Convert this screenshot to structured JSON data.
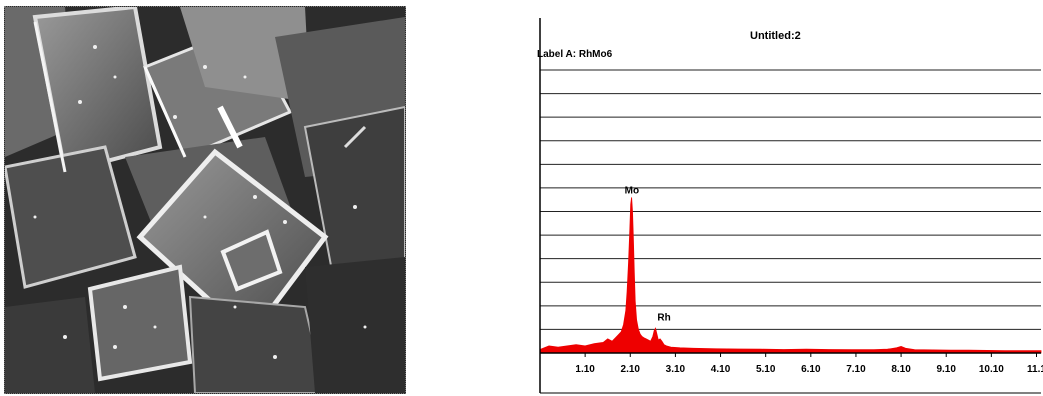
{
  "sem_image": {
    "description_icon": "sem-micrograph-image"
  },
  "chart_data": {
    "type": "area",
    "title": "Untitled:2",
    "label_text": "Label A: RhMo6",
    "xlabel": "",
    "ylabel": "",
    "x_tick_labels": [
      "1.10",
      "2.10",
      "3.10",
      "4.10",
      "5.10",
      "6.10",
      "7.10",
      "8.10",
      "9.10",
      "10.10",
      "11.1"
    ],
    "x_ticks": [
      1.1,
      2.1,
      3.1,
      4.1,
      5.1,
      6.1,
      7.1,
      8.1,
      9.1,
      10.1,
      11.1
    ],
    "xlim": [
      0.1,
      11.2
    ],
    "ylim": [
      0,
      12
    ],
    "grid": true,
    "fill_color": "#ee0000",
    "annotations": [
      {
        "text": "Mo",
        "x": 2.13,
        "y": 6.6
      },
      {
        "text": "Rh",
        "x": 2.7,
        "y": 1.2
      }
    ],
    "series": [
      {
        "x": [
          0.1,
          0.3,
          0.5,
          0.7,
          0.9,
          1.1,
          1.3,
          1.5,
          1.6,
          1.7,
          1.8,
          1.9,
          1.95,
          2.0,
          2.03,
          2.06,
          2.09,
          2.11,
          2.13,
          2.15,
          2.17,
          2.19,
          2.21,
          2.24,
          2.28,
          2.32,
          2.36,
          2.4,
          2.45,
          2.5,
          2.55,
          2.6,
          2.63,
          2.66,
          2.69,
          2.72,
          2.76,
          2.8,
          2.85,
          2.9,
          3.0,
          3.2,
          3.5,
          4.0,
          4.5,
          5.0,
          5.5,
          6.0,
          6.5,
          7.0,
          7.5,
          7.8,
          8.0,
          8.1,
          8.2,
          8.4,
          8.8,
          9.2,
          9.6,
          10.0,
          10.4,
          10.8,
          11.2
        ],
        "y": [
          0.15,
          0.3,
          0.25,
          0.3,
          0.35,
          0.3,
          0.4,
          0.45,
          0.6,
          0.5,
          0.7,
          0.9,
          1.2,
          1.8,
          2.6,
          3.8,
          5.2,
          6.3,
          6.6,
          6.0,
          4.8,
          3.4,
          2.2,
          1.4,
          1.0,
          0.8,
          0.7,
          0.65,
          0.6,
          0.55,
          0.5,
          0.7,
          0.95,
          1.05,
          0.8,
          0.55,
          0.6,
          0.5,
          0.35,
          0.3,
          0.25,
          0.22,
          0.2,
          0.18,
          0.17,
          0.16,
          0.15,
          0.16,
          0.15,
          0.14,
          0.14,
          0.16,
          0.22,
          0.28,
          0.2,
          0.14,
          0.13,
          0.12,
          0.12,
          0.11,
          0.1,
          0.1,
          0.1
        ]
      }
    ]
  }
}
